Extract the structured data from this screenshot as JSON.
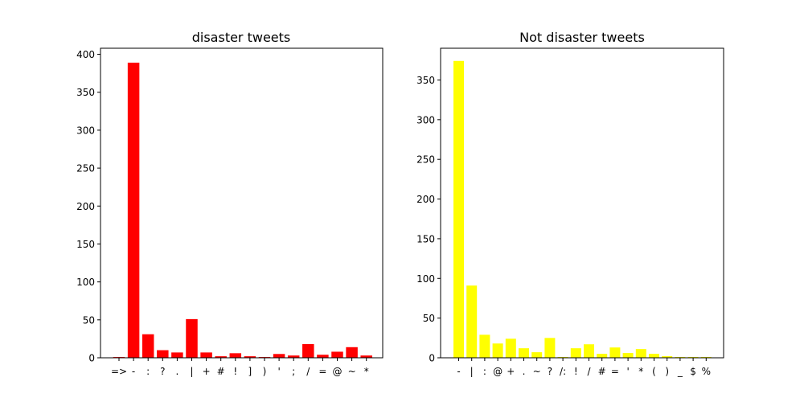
{
  "chart_data": [
    {
      "type": "bar",
      "title": "disaster tweets",
      "xlabel": "",
      "ylabel": "",
      "color": "#ff0000",
      "categories": [
        "=>",
        "-",
        ":",
        "?",
        ".",
        "|",
        "+",
        "#",
        "!",
        "]",
        ")",
        "'",
        ";",
        "/",
        "=",
        "@",
        "~",
        "*"
      ],
      "values": [
        1,
        389,
        31,
        10,
        7,
        51,
        7,
        2,
        6,
        2,
        1,
        5,
        3,
        18,
        4,
        8,
        14,
        3
      ],
      "ylim": [
        0,
        408
      ],
      "yticks": [
        0,
        50,
        100,
        150,
        200,
        250,
        300,
        350,
        400
      ]
    },
    {
      "type": "bar",
      "title": "Not disaster tweets",
      "xlabel": "",
      "ylabel": "",
      "color": "#ffff00",
      "categories": [
        "-",
        "|",
        ":",
        "@",
        "+",
        ".",
        "~",
        "?",
        "/:",
        "!",
        "/",
        "#",
        "=",
        "'",
        "*",
        "(",
        ")",
        "_",
        "$",
        "%"
      ],
      "values": [
        374,
        91,
        29,
        18,
        24,
        12,
        7,
        25,
        1,
        12,
        17,
        5,
        13,
        6,
        11,
        5,
        2,
        1,
        1,
        1
      ],
      "ylim": [
        0,
        390
      ],
      "yticks": [
        0,
        50,
        100,
        150,
        200,
        250,
        300,
        350
      ]
    }
  ]
}
